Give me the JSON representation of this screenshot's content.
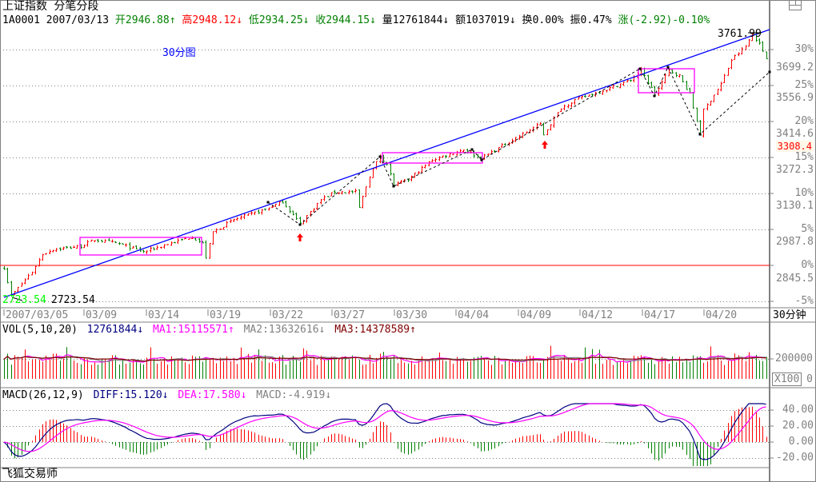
{
  "window": {
    "title": "上证指数 分笔分段",
    "footer": "飞狐交易师",
    "restore_icon": "window-restore-icon"
  },
  "info_bar": {
    "code": "1A0001",
    "date": "2007/03/13",
    "open": {
      "label": "开",
      "value": "2946.88",
      "arrow": "↑"
    },
    "high": {
      "label": "高",
      "value": "2948.12",
      "arrow": "↓"
    },
    "low": {
      "label": "低",
      "value": "2934.25",
      "arrow": "↓"
    },
    "close": {
      "label": "收",
      "value": "2944.15",
      "arrow": "↓"
    },
    "volume": {
      "label": "量",
      "value": "12761844",
      "arrow": "↓"
    },
    "amount": {
      "label": "额",
      "value": "1037019",
      "arrow": "↓"
    },
    "turnover": {
      "label": "换",
      "value": "0.00%"
    },
    "amplitude": {
      "label": "振",
      "value": "0.47%"
    },
    "change": {
      "label": "涨",
      "value": "(-2.92)-0.10%"
    }
  },
  "colors": {
    "up": "#ff0000",
    "down": "#008000",
    "trendline": "#0000ff",
    "box": "#ff00ff",
    "grid": "#808080",
    "diff": "#000080",
    "dea": "#ff00ff",
    "ma1": "#ff00ff",
    "ma2": "#808080",
    "ma3": "#800000"
  },
  "chart_data": [
    {
      "type": "candlestick",
      "title": "30分图",
      "period_label": "30分钟",
      "base_price": 2845.5,
      "percent_ticks": [
        "30%",
        "25%",
        "20%",
        "15%",
        "10%",
        "5%",
        "0%",
        "-5%"
      ],
      "percent_values": [
        30,
        25,
        20,
        15,
        10,
        5,
        0,
        -5
      ],
      "price_ticks": [
        "3699.2",
        "3556.9",
        "3414.6",
        "3272.3",
        "3130.1",
        "2987.8",
        "2845.5"
      ],
      "cursor_price": "3308.4",
      "date_ticks": [
        "2007/03/05",
        "03/09",
        "03/14",
        "03/19",
        "03/22",
        "03/27",
        "03/30",
        "04/04",
        "04/09",
        "04/12",
        "04/17",
        "04/20"
      ],
      "high_label": "3761.99",
      "low_label": "2723.54",
      "bar_count": 220,
      "price_path": [
        [
          0,
          2836
        ],
        [
          2,
          2725
        ],
        [
          8,
          2820
        ],
        [
          11,
          2890
        ],
        [
          14,
          2909
        ],
        [
          22,
          2921
        ],
        [
          26,
          2947
        ],
        [
          33,
          2931
        ],
        [
          40,
          2899
        ],
        [
          45,
          2921
        ],
        [
          54,
          2959
        ],
        [
          57,
          2931
        ],
        [
          58,
          2877
        ],
        [
          60,
          2978
        ],
        [
          66,
          3026
        ],
        [
          75,
          3067
        ],
        [
          80,
          3098
        ],
        [
          85,
          3010
        ],
        [
          91,
          3105
        ],
        [
          95,
          3136
        ],
        [
          101,
          3136
        ],
        [
          102,
          3073
        ],
        [
          105,
          3200
        ],
        [
          108,
          3279
        ],
        [
          110,
          3247
        ],
        [
          112,
          3162
        ],
        [
          116,
          3184
        ],
        [
          123,
          3263
        ],
        [
          132,
          3304
        ],
        [
          137,
          3269
        ],
        [
          146,
          3342
        ],
        [
          154,
          3405
        ],
        [
          155,
          3364
        ],
        [
          160,
          3468
        ],
        [
          164,
          3500
        ],
        [
          174,
          3547
        ],
        [
          180,
          3579
        ],
        [
          183,
          3617
        ],
        [
          187,
          3522
        ],
        [
          191,
          3617
        ],
        [
          194,
          3595
        ],
        [
          197,
          3522
        ],
        [
          200,
          3364
        ],
        [
          201,
          3459
        ],
        [
          206,
          3563
        ],
        [
          209,
          3658
        ],
        [
          213,
          3712
        ],
        [
          215,
          3762
        ],
        [
          217,
          3721
        ],
        [
          219,
          3668
        ]
      ]
    },
    {
      "type": "bar",
      "title": "VOL(5,10,20)",
      "unit_label": "X100",
      "ticks": [
        "200000",
        "0"
      ],
      "tick_values": [
        200000,
        0
      ],
      "typical_volume": 185000,
      "legend": {
        "volume": "12761844↓",
        "ma1": "MA1:15115571↑",
        "ma2": "MA2:13632616↓",
        "ma3": "MA3:14378589↑"
      }
    },
    {
      "type": "line",
      "title": "MACD(26,12,9)",
      "ticks": [
        "40.00",
        "20.00",
        "0.00",
        "-20.00"
      ],
      "tick_values": [
        40,
        20,
        0,
        -20
      ],
      "legend": {
        "diff": "DIFF:15.120↓",
        "dea": "DEA:17.580↓",
        "macd": "MACD:-4.919↓"
      }
    }
  ]
}
